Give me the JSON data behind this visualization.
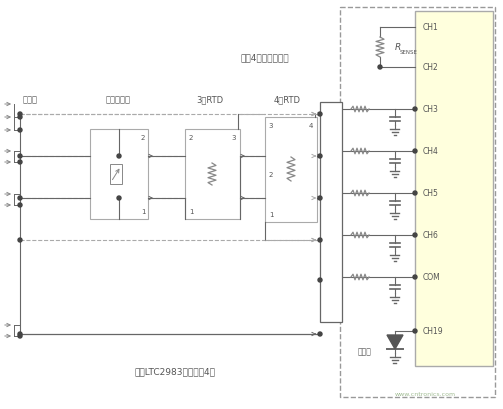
{
  "fig_width": 5.03,
  "fig_height": 4.1,
  "dpi": 100,
  "bg_color": "#ffffff",
  "dashed_color": "#aaaaaa",
  "solid_color": "#666666",
  "chip_color": "#ffffdd",
  "chip_border": "#aaaaaa",
  "text_color": "#555555",
  "label_top_text": "所有4组传感器共用",
  "label_bottom_text": "每个LTC2983连接多达4组",
  "label_col1": "热电偶",
  "label_col2": "热敏电际器",
  "label_col3": "3线RTD",
  "label_col4": "4线RTD",
  "channels": [
    "CH1",
    "CH2",
    "CH3",
    "CH4",
    "CH5",
    "CH6",
    "COM",
    "CH19"
  ],
  "watermark": "www.cntronics.com",
  "cold_junction_label": "冷接点"
}
